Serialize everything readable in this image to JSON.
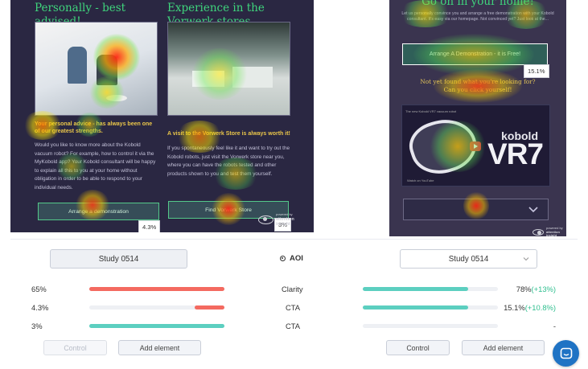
{
  "colors": {
    "accent_green": "#3fd47c",
    "bar_red": "#f46a60",
    "bar_teal": "#5ccfc0",
    "delta_green": "#2fbf8f",
    "chat_blue": "#1f73c4"
  },
  "left_heatmap": {
    "heading_left": "Personally - best advised!",
    "heading_right": "Experience in the Vorwerk stores",
    "bold_left": "Your personal advice - has always been one of our greatest strengths.",
    "body_left": "Would you like to know more about the Kobold vacuum robot? For example, how to control it via the MyKobold app? Your Kobold consultant will be happy to explain all this to you at your home without obligation in order to be able to respond to your individual needs.",
    "bold_right": "A visit to the Vorwerk Store is always worth it!",
    "body_right": "If you spontaneously feel like it and want to try out the Kobold robots, just visit the Vorwerk store near you, where you can have the robots tested and other products shown to you and test them yourself.",
    "button_left": "Arrange a demonstration",
    "button_right": "Find Vorwerk Store",
    "badge_left": "4.3%",
    "badge_right": "3%",
    "brand_line1": "powered by",
    "brand_line2": "attention",
    "brand_line3": "insight"
  },
  "right_heatmap": {
    "heading": "Go on in your home!",
    "intro": "Let us personally convince you and arrange a free demonstration with your Kobold consultant. It's easy via our homepage. Not convinced yet? Just look at the...",
    "cta": "Arrange A Demonstration - it is Free!",
    "badge": "15.1%",
    "question_line1": "Not yet found what you're looking for?",
    "question_line2": "Can you click yourself!",
    "video_topbar": "The new Kobold VR7 vacuum robot",
    "video_brand": "kobold",
    "video_model": "VR7",
    "video_footer": "Watch on YouTube",
    "brand_line1": "powered by",
    "brand_line2": "attention",
    "brand_line3": "insight"
  },
  "compare": {
    "study_left": "Study 0514",
    "study_right": "Study 0514",
    "aoi_label": "AOI",
    "rows": [
      {
        "left_value": "65%",
        "label": "Clarity",
        "right_value": "78%",
        "right_delta": "(+13%)",
        "left_fill": 1.0,
        "right_fill": 0.78
      },
      {
        "left_value": "4.3%",
        "label": "CTA",
        "right_value": "15.1%",
        "right_delta": "(+10.8%)",
        "left_fill": 0.22,
        "right_fill": 0.78
      },
      {
        "left_value": "3%",
        "label": "CTA",
        "right_value": "-",
        "right_delta": "",
        "left_fill": 1.0,
        "right_fill": 0
      }
    ],
    "left_buttons": {
      "control": "Control",
      "add": "Add element"
    },
    "right_buttons": {
      "control": "Control",
      "add": "Add element"
    }
  }
}
